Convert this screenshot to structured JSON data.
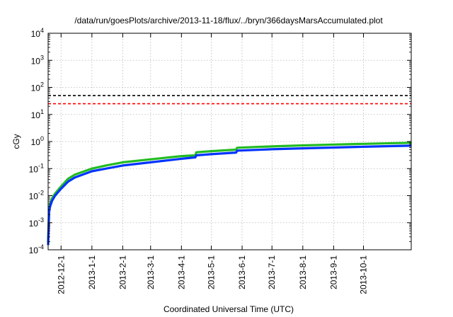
{
  "chart_data": {
    "type": "line",
    "title": "/data/run/goesPlots/archive/2013-11-18/flux/../bryn/366daysMarsAccumulated.plot",
    "xlabel": "Coordinated Universal Time (UTC)",
    "ylabel": "cGy",
    "y_scale": "log",
    "ylim": [
      0.0001,
      10000
    ],
    "y_ticks": [
      {
        "value": 0.0001,
        "base": "10",
        "exp": "-4"
      },
      {
        "value": 0.001,
        "base": "10",
        "exp": "-3"
      },
      {
        "value": 0.01,
        "base": "10",
        "exp": "-2"
      },
      {
        "value": 0.1,
        "base": "10",
        "exp": "-1"
      },
      {
        "value": 1,
        "base": "10",
        "exp": "0"
      },
      {
        "value": 10,
        "base": "10",
        "exp": "1"
      },
      {
        "value": 100,
        "base": "10",
        "exp": "2"
      },
      {
        "value": 1000,
        "base": "10",
        "exp": "3"
      },
      {
        "value": 10000,
        "base": "10",
        "exp": "4"
      }
    ],
    "xlim": [
      "2012-11-18",
      "2013-11-18"
    ],
    "x_ticks": [
      "2012-12-1",
      "2013-1-1",
      "2013-2-1",
      "2013-3-1",
      "2013-4-1",
      "2013-5-1",
      "2013-6-1",
      "2013-7-1",
      "2013-8-1",
      "2013-9-1",
      "2013-10-1"
    ],
    "x_tick_dates": [
      "2012-12-01",
      "2013-01-01",
      "2013-02-01",
      "2013-03-01",
      "2013-04-01",
      "2013-05-01",
      "2013-06-01",
      "2013-07-01",
      "2013-08-01",
      "2013-09-01",
      "2013-10-01"
    ],
    "grid": true,
    "reference_lines": [
      {
        "y": 50,
        "color": "#000000",
        "style": "dashed"
      },
      {
        "y": 25,
        "color": "#ff0000",
        "style": "dashed"
      }
    ],
    "series": [
      {
        "color": "#22bb22",
        "x": [
          "2012-11-18",
          "2012-11-19",
          "2012-11-20",
          "2012-11-22",
          "2012-11-25",
          "2012-12-01",
          "2012-12-08",
          "2012-12-15",
          "2013-01-01",
          "2013-01-15",
          "2013-02-01",
          "2013-03-01",
          "2013-04-01",
          "2013-04-15",
          "2013-04-16",
          "2013-05-01",
          "2013-05-26",
          "2013-05-27",
          "2013-06-15",
          "2013-07-01",
          "2013-08-01",
          "2013-09-01",
          "2013-10-01",
          "2013-11-01",
          "2013-11-18"
        ],
        "values": [
          0.0002,
          0.003,
          0.005,
          0.008,
          0.012,
          0.022,
          0.042,
          0.06,
          0.1,
          0.13,
          0.17,
          0.22,
          0.29,
          0.31,
          0.4,
          0.44,
          0.5,
          0.59,
          0.63,
          0.66,
          0.72,
          0.77,
          0.82,
          0.87,
          0.9
        ]
      },
      {
        "color": "#0033ff",
        "x": [
          "2012-11-18",
          "2012-11-19",
          "2012-11-20",
          "2012-11-22",
          "2012-11-25",
          "2012-12-01",
          "2012-12-08",
          "2012-12-15",
          "2013-01-01",
          "2013-01-15",
          "2013-02-01",
          "2013-03-01",
          "2013-04-01",
          "2013-04-15",
          "2013-04-16",
          "2013-05-01",
          "2013-05-26",
          "2013-05-27",
          "2013-06-15",
          "2013-07-01",
          "2013-08-01",
          "2013-09-01",
          "2013-10-01",
          "2013-11-01",
          "2013-11-18"
        ],
        "values": [
          0.00015,
          0.0025,
          0.004,
          0.0065,
          0.01,
          0.018,
          0.033,
          0.047,
          0.08,
          0.1,
          0.13,
          0.17,
          0.23,
          0.26,
          0.31,
          0.34,
          0.39,
          0.46,
          0.49,
          0.52,
          0.56,
          0.6,
          0.64,
          0.68,
          0.7
        ]
      }
    ]
  }
}
